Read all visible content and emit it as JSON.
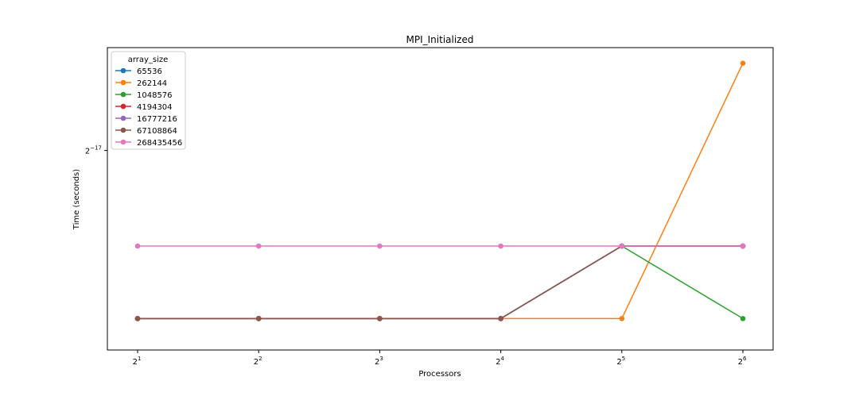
{
  "chart_data": {
    "type": "line",
    "title": "MPI_Initialized",
    "xlabel": "Processors",
    "ylabel": "Time (seconds)",
    "x_scale": "log2",
    "y_scale": "log2",
    "x": [
      2,
      4,
      8,
      16,
      32,
      64
    ],
    "x_tick_labels": [
      {
        "base": "2",
        "exp": "1"
      },
      {
        "base": "2",
        "exp": "2"
      },
      {
        "base": "2",
        "exp": "3"
      },
      {
        "base": "2",
        "exp": "4"
      },
      {
        "base": "2",
        "exp": "5"
      },
      {
        "base": "2",
        "exp": "6"
      }
    ],
    "y_ticks": [
      {
        "value": 7.62939453125e-06,
        "base": "2",
        "exp": "−17"
      }
    ],
    "ylim": [
      4.62e-06,
      9.88e-06
    ],
    "grid": false,
    "legend": {
      "title": "array_size",
      "position": "top-left"
    },
    "series": [
      {
        "name": "65536",
        "color": "#1f77b4",
        "values": [
          5e-06,
          5e-06,
          5e-06,
          5e-06,
          6e-06,
          6e-06
        ]
      },
      {
        "name": "262144",
        "color": "#ff7f0e",
        "values": [
          5e-06,
          5e-06,
          5e-06,
          5e-06,
          5e-06,
          9.5e-06
        ]
      },
      {
        "name": "1048576",
        "color": "#2ca02c",
        "values": [
          5e-06,
          5e-06,
          5e-06,
          5e-06,
          6e-06,
          5e-06
        ]
      },
      {
        "name": "4194304",
        "color": "#d62728",
        "values": [
          5e-06,
          5e-06,
          5e-06,
          5e-06,
          6e-06,
          6e-06
        ]
      },
      {
        "name": "16777216",
        "color": "#9467bd",
        "values": [
          5e-06,
          5e-06,
          5e-06,
          5e-06,
          6e-06,
          6e-06
        ]
      },
      {
        "name": "67108864",
        "color": "#8c564b",
        "values": [
          5e-06,
          5e-06,
          5e-06,
          5e-06,
          6e-06,
          6e-06
        ]
      },
      {
        "name": "268435456",
        "color": "#e377c2",
        "values": [
          6e-06,
          6e-06,
          6e-06,
          6e-06,
          6e-06,
          6e-06
        ]
      }
    ]
  }
}
